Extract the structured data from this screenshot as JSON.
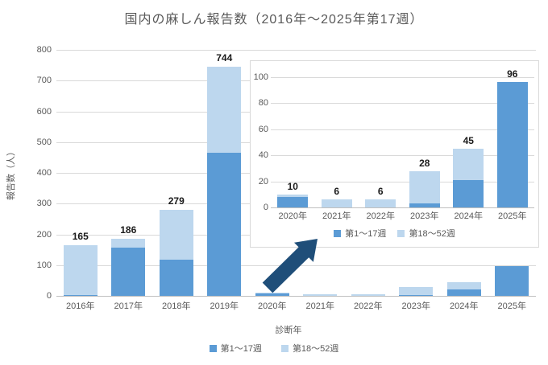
{
  "title": "国内の麻しん報告数（2016年～2025年第17週）",
  "axes": {
    "y_title": "報告数（人）",
    "x_title": "診断年"
  },
  "legend": {
    "series1_label": "第1～17週",
    "series2_label": "第18～52週"
  },
  "colors": {
    "series1": "#5b9bd5",
    "series2": "#bdd7ee",
    "arrow": "#1f4e79",
    "grid": "#d9d9d9",
    "axis_line": "#bfbfbf",
    "axis_text": "#595959",
    "title_text": "#595959",
    "value_text": "#1a1a1a"
  },
  "chart_data": [
    {
      "type": "bar",
      "stacked": true,
      "name": "main",
      "title": "国内の麻しん報告数（2016年～2025年第17週）",
      "xlabel": "診断年",
      "ylabel": "報告数（人）",
      "categories": [
        "2016年",
        "2017年",
        "2018年",
        "2019年",
        "2020年",
        "2021年",
        "2022年",
        "2023年",
        "2024年",
        "2025年"
      ],
      "series": [
        {
          "name": "第1～17週",
          "color": "#5b9bd5",
          "values": [
            3,
            158,
            117,
            465,
            8,
            0,
            0,
            3,
            21,
            96
          ]
        },
        {
          "name": "第18～52週",
          "color": "#bdd7ee",
          "values": [
            162,
            28,
            162,
            279,
            2,
            6,
            6,
            25,
            24,
            0
          ]
        }
      ],
      "total_labels": [
        165,
        186,
        279,
        744,
        null,
        null,
        null,
        null,
        null,
        null
      ],
      "ylim": [
        0,
        800
      ],
      "ytick_step": 100,
      "grid": true,
      "legend_position": "bottom"
    },
    {
      "type": "bar",
      "stacked": true,
      "name": "inset-2020-2025",
      "categories": [
        "2020年",
        "2021年",
        "2022年",
        "2023年",
        "2024年",
        "2025年"
      ],
      "series": [
        {
          "name": "第1～17週",
          "color": "#5b9bd5",
          "values": [
            8,
            0,
            0,
            3,
            21,
            96
          ]
        },
        {
          "name": "第18～52週",
          "color": "#bdd7ee",
          "values": [
            2,
            6,
            6,
            25,
            24,
            0
          ]
        }
      ],
      "total_labels": [
        10,
        6,
        6,
        28,
        45,
        96
      ],
      "ylim": [
        0,
        100
      ],
      "ytick_step": 20,
      "grid": true,
      "legend_position": "bottom"
    }
  ]
}
